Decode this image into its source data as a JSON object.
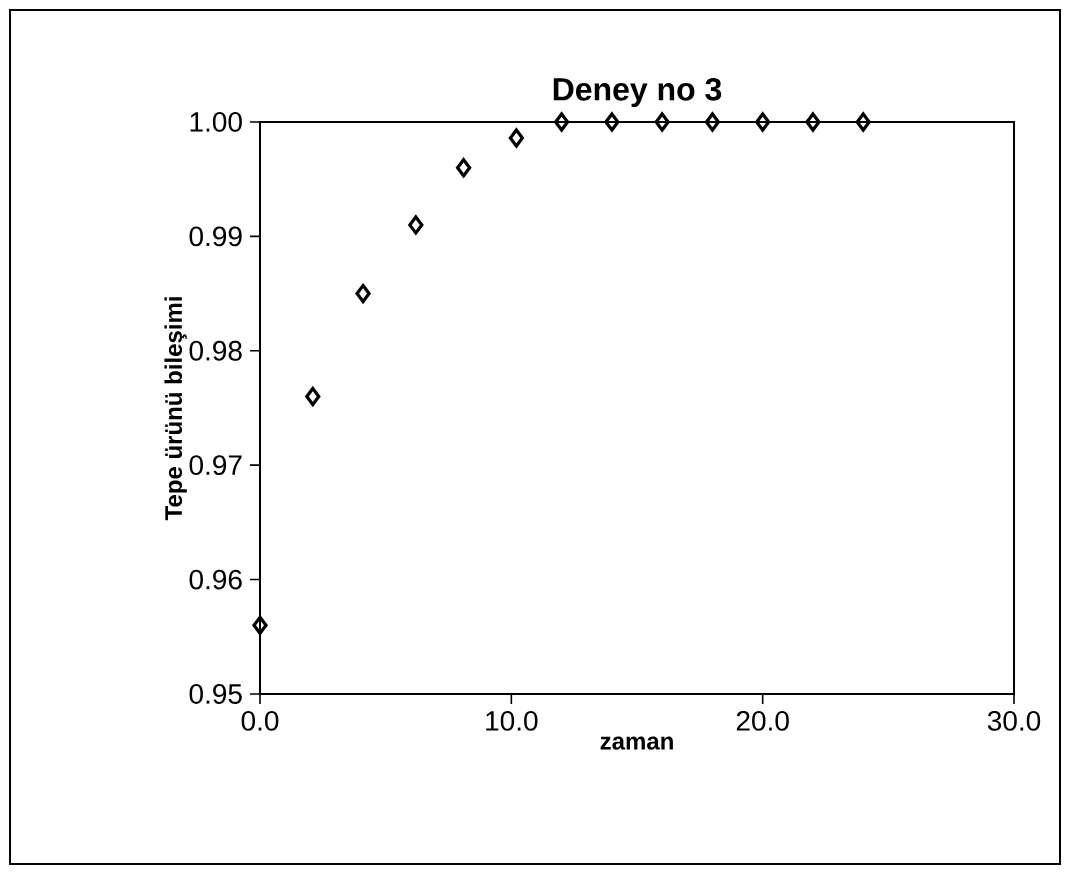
{
  "chart_data": {
    "type": "scatter",
    "title": "Deney no 3",
    "xlabel": "zaman",
    "ylabel": "Tepe ürünü bileşimi",
    "x": [
      0,
      2.1,
      4.1,
      6.2,
      8.1,
      10.2,
      12,
      14,
      16,
      18,
      20,
      22,
      24
    ],
    "values": [
      0.956,
      0.976,
      0.985,
      0.991,
      0.996,
      0.9986,
      1.0,
      1.0,
      1.0,
      1.0,
      1.0,
      1.0,
      1.0
    ],
    "color": "#000000",
    "marker": "diamond",
    "xlim": [
      0,
      30
    ],
    "xticks": [
      {
        "value": 0,
        "label": "0.0"
      },
      {
        "value": 10,
        "label": "10.0"
      },
      {
        "value": 20,
        "label": "20.0"
      },
      {
        "value": 30,
        "label": "30.0"
      }
    ],
    "ylim": [
      0.95,
      1.0
    ],
    "yticks": [
      0.95,
      0.96,
      0.97,
      0.98,
      0.99,
      {
        "value": 1.0,
        "label": "1.00"
      }
    ]
  }
}
